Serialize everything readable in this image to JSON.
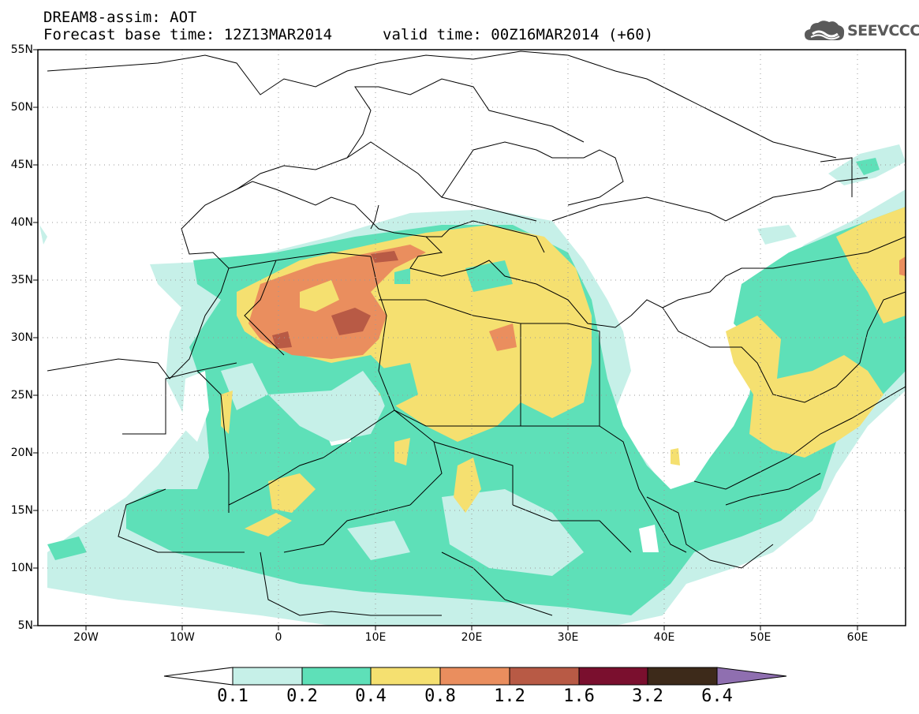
{
  "header": {
    "title_line1": "DREAM8-assim: AOT",
    "title_base": "Forecast base time: 12Z13MAR2014",
    "title_valid": "valid time: 00Z16MAR2014 (+60)",
    "logo_text": "SEEVCCC",
    "logo_icon": "cloud-icon"
  },
  "map": {
    "lon_range": [
      -25,
      65
    ],
    "lat_range": [
      5,
      55
    ],
    "lat_labels": [
      "55N",
      "50N",
      "45N",
      "40N",
      "35N",
      "30N",
      "25N",
      "20N",
      "15N",
      "10N",
      "5N"
    ],
    "lon_labels": [
      "20W",
      "10W",
      "0",
      "10E",
      "20E",
      "30E",
      "40E",
      "50E",
      "60E"
    ],
    "grid": "dotted",
    "region": "North Africa, Mediterranean and Middle East"
  },
  "colorbar": {
    "levels": [
      "0.1",
      "0.2",
      "0.4",
      "0.8",
      "1.2",
      "1.6",
      "3.2",
      "6.4"
    ],
    "colors": [
      "#c6f0e8",
      "#5ee0b8",
      "#f5e070",
      "#ea8e5e",
      "#b85a45",
      "#7a0f2e",
      "#3d2a1a",
      "#8f6fb0"
    ],
    "below_color": "#ffffff"
  }
}
